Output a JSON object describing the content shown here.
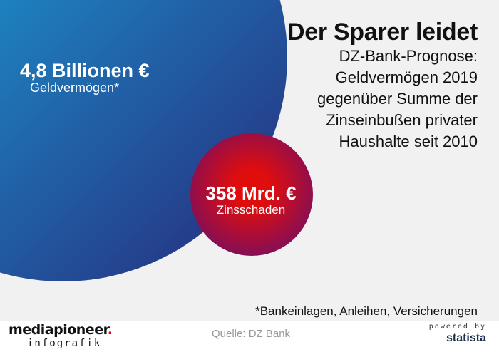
{
  "title": "Der Sparer leidet",
  "subtitle_lines": [
    "DZ-Bank-Prognose:",
    "Geldvermögen 2019",
    "gegenüber Summe der",
    "Zinseinbußen privater",
    "Haushalte seit 2010"
  ],
  "chart_data": {
    "type": "bubble",
    "unit": "Mrd. €",
    "items": [
      {
        "name": "Geldvermögen*",
        "value": 4800,
        "value_label": "4,8 Billionen €",
        "color_from": "#18b5e8",
        "color_to": "#27287a"
      },
      {
        "name": "Zinsschaden",
        "value": 358,
        "value_label": "358 Mrd. €",
        "color_from": "#e00d0d",
        "color_to": "#7a0f5e"
      }
    ]
  },
  "footnote": "*Bankeinlagen, Anleihen, Versicherungen",
  "footer": {
    "brand_main": "mediapioneer",
    "brand_dot": ".",
    "brand_sub": "infografik",
    "source": "Quelle: DZ Bank",
    "powered_by": "powered by",
    "statista": "statista"
  }
}
